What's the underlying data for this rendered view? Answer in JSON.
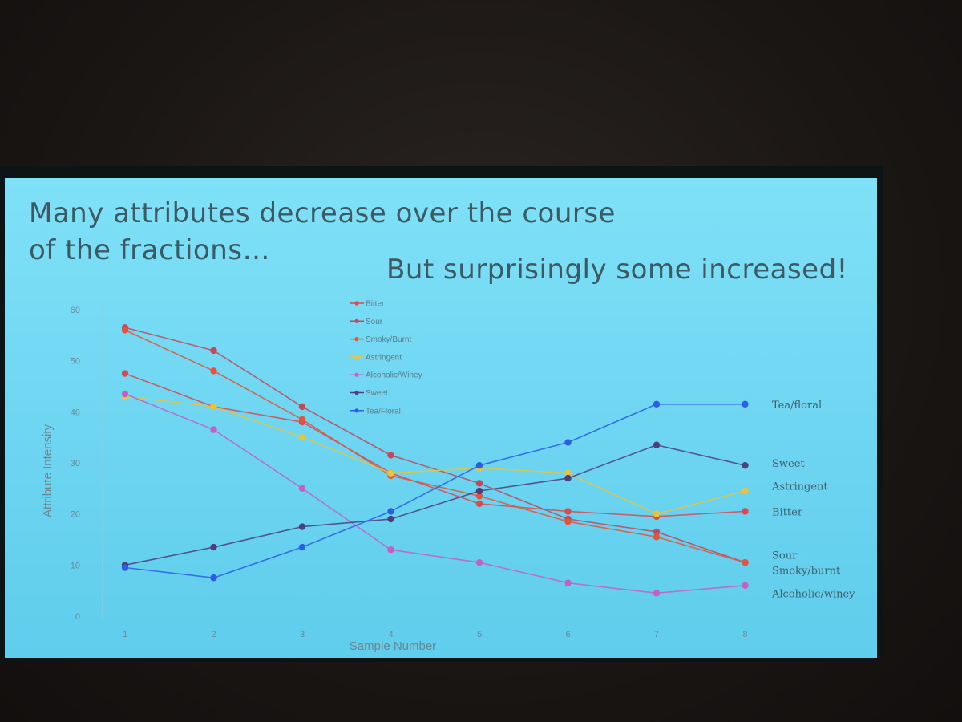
{
  "slide": {
    "title_line1": "Many attributes decrease over the course",
    "title_line2": "of the fractions…",
    "subtitle": "But surprisingly some increased!"
  },
  "chart_data": {
    "type": "line",
    "xlabel": "Sample Number",
    "ylabel": "Attribute Intensity",
    "x": [
      1,
      2,
      3,
      4,
      5,
      6,
      7,
      8
    ],
    "ylim": [
      0,
      60
    ],
    "yticks": [
      0,
      10,
      20,
      30,
      40,
      50,
      60
    ],
    "legend_position": "top-center",
    "series": [
      {
        "name": "Bitter",
        "color": "#d9494f",
        "values": [
          47.5,
          41,
          38,
          28,
          22,
          20.5,
          19.5,
          20.5
        ]
      },
      {
        "name": "Sour",
        "color": "#c2485c",
        "values": [
          56.5,
          52,
          41,
          31.5,
          26,
          19,
          16.5,
          10.5
        ]
      },
      {
        "name": "Smoky/Burnt",
        "color": "#e3553a",
        "values": [
          56,
          48,
          38.5,
          27.5,
          23.5,
          18.5,
          15.5,
          10.5
        ]
      },
      {
        "name": "Astringent",
        "color": "#e8c33c",
        "values": [
          43,
          41,
          35,
          28,
          29,
          28,
          20,
          24.5
        ]
      },
      {
        "name": "Alcoholic/Winey",
        "color": "#c65fc3",
        "values": [
          43.5,
          36.5,
          25,
          13,
          10.5,
          6.5,
          4.5,
          6
        ]
      },
      {
        "name": "Sweet",
        "color": "#4b3f7c",
        "values": [
          10,
          13.5,
          17.5,
          19,
          24.5,
          27,
          33.5,
          29.5
        ]
      },
      {
        "name": "Tea/Floral",
        "color": "#2c5ee0",
        "values": [
          9.5,
          7.5,
          13.5,
          20.5,
          29.5,
          34,
          41.5,
          41.5
        ]
      }
    ],
    "end_labels": [
      {
        "text": "Tea/floral",
        "value": 41.5
      },
      {
        "text": "Sweet",
        "value": 30
      },
      {
        "text": "Astringent",
        "value": 25.5
      },
      {
        "text": "Bitter",
        "value": 20.5
      },
      {
        "text": "Sour",
        "value": 12
      },
      {
        "text": "Smoky/burnt",
        "value": 9
      },
      {
        "text": "Alcoholic/winey",
        "value": 4.5
      }
    ]
  }
}
